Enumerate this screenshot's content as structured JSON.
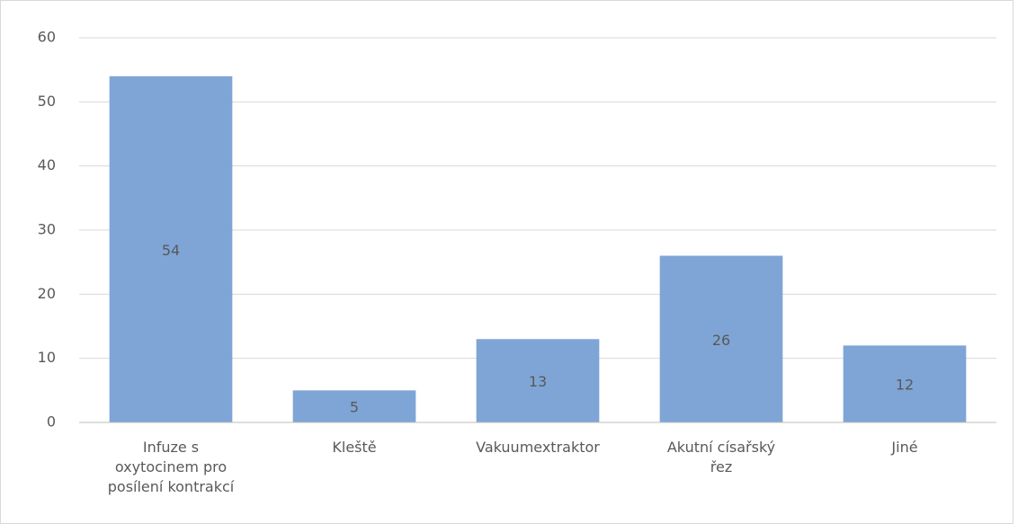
{
  "chart_data": {
    "type": "bar",
    "categories": [
      "Infuze s oxytocinem pro posílení kontrakcí",
      "Kleště",
      "Vakuumextraktor",
      "Akutní císařský řez",
      "Jiné"
    ],
    "values": [
      54,
      5,
      13,
      26,
      12
    ],
    "color": "#7fa5d6",
    "ylim": [
      0,
      60
    ],
    "yticks": [
      0,
      10,
      20,
      30,
      40,
      50,
      60
    ],
    "grid": true
  }
}
